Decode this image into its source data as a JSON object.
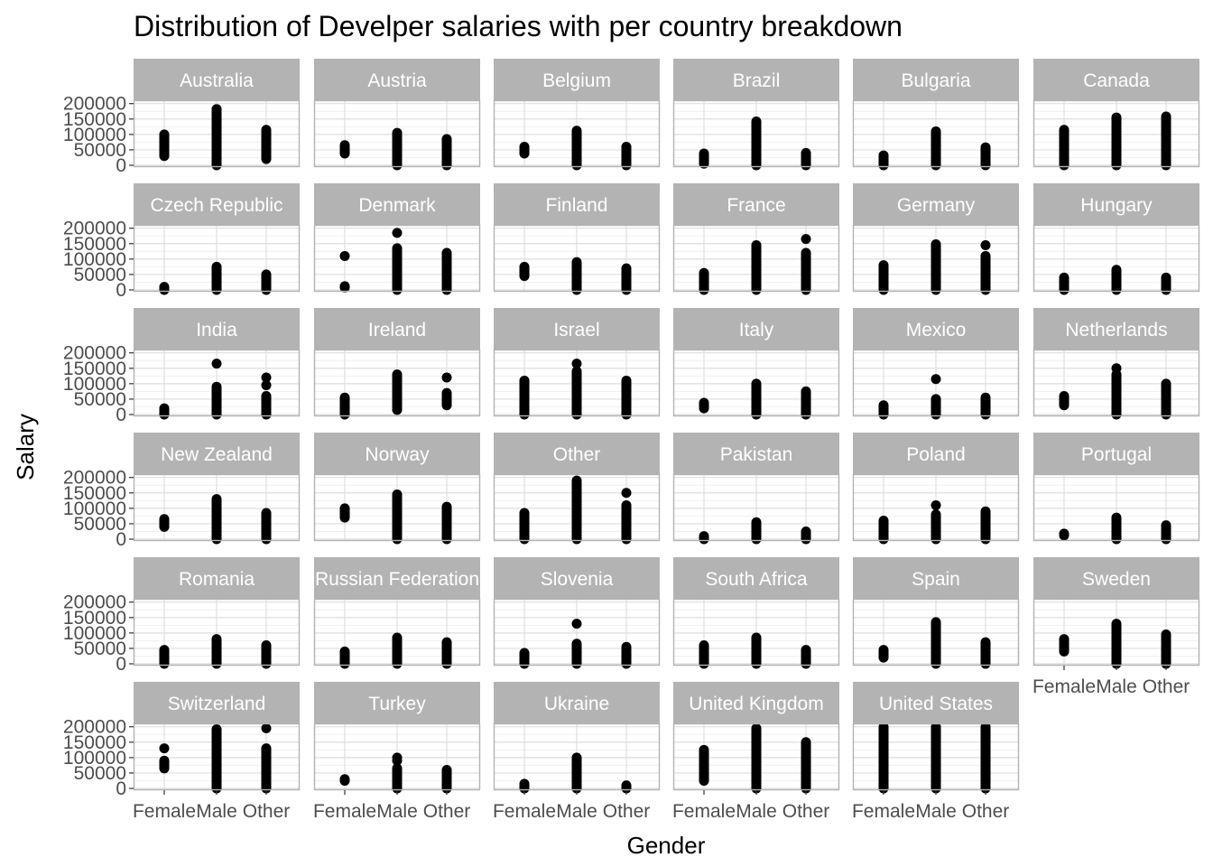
{
  "chart_data": {
    "type": "scatter",
    "title": "Distribution of Develper salaries with per country breakdown",
    "xlabel": "Gender",
    "ylabel": "Salary",
    "categories": [
      "Female",
      "Male",
      "Other"
    ],
    "y_ticks": [
      "0",
      "50000",
      "100000",
      "150000",
      "200000"
    ],
    "ylim": [
      0,
      205000
    ],
    "grid": true,
    "facets": [
      {
        "country": "Australia",
        "ranges": [
          [
            30000,
            100000
          ],
          [
            0,
            182000
          ],
          [
            20000,
            115000
          ]
        ],
        "points": [
          [
            1,
            182000
          ]
        ]
      },
      {
        "country": "Austria",
        "ranges": [
          [
            38000,
            65000
          ],
          [
            0,
            105000
          ],
          [
            0,
            85000
          ]
        ],
        "points": []
      },
      {
        "country": "Belgium",
        "ranges": [
          [
            38000,
            60000
          ],
          [
            0,
            112000
          ],
          [
            0,
            60000
          ]
        ],
        "points": []
      },
      {
        "country": "Brazil",
        "ranges": [
          [
            5000,
            38000
          ],
          [
            0,
            142000
          ],
          [
            0,
            40000
          ]
        ],
        "points": []
      },
      {
        "country": "Bulgaria",
        "ranges": [
          [
            0,
            32000
          ],
          [
            0,
            110000
          ],
          [
            0,
            58000
          ]
        ],
        "points": [
          [
            1,
            80000
          ]
        ]
      },
      {
        "country": "Canada",
        "ranges": [
          [
            0,
            115000
          ],
          [
            0,
            155000
          ],
          [
            0,
            158000
          ]
        ],
        "points": []
      },
      {
        "country": "Czech Republic",
        "ranges": [
          [
            0,
            10000
          ],
          [
            0,
            75000
          ],
          [
            0,
            50000
          ]
        ],
        "points": []
      },
      {
        "country": "Denmark",
        "ranges": [
          [
            8000,
            12000
          ],
          [
            0,
            135000
          ],
          [
            0,
            120000
          ]
        ],
        "points": [
          [
            0,
            110000
          ],
          [
            1,
            185000
          ]
        ]
      },
      {
        "country": "Finland",
        "ranges": [
          [
            45000,
            75000
          ],
          [
            0,
            90000
          ],
          [
            0,
            70000
          ]
        ],
        "points": []
      },
      {
        "country": "France",
        "ranges": [
          [
            0,
            55000
          ],
          [
            0,
            145000
          ],
          [
            0,
            120000
          ]
        ],
        "points": [
          [
            2,
            165000
          ]
        ]
      },
      {
        "country": "Germany",
        "ranges": [
          [
            0,
            80000
          ],
          [
            0,
            148000
          ],
          [
            0,
            110000
          ]
        ],
        "points": [
          [
            2,
            145000
          ]
        ]
      },
      {
        "country": "Hungary",
        "ranges": [
          [
            0,
            40000
          ],
          [
            0,
            65000
          ],
          [
            0,
            40000
          ]
        ],
        "points": []
      },
      {
        "country": "India",
        "ranges": [
          [
            0,
            20000
          ],
          [
            0,
            90000
          ],
          [
            0,
            60000
          ]
        ],
        "points": [
          [
            1,
            165000
          ],
          [
            2,
            95000
          ],
          [
            2,
            120000
          ]
        ]
      },
      {
        "country": "Ireland",
        "ranges": [
          [
            0,
            55000
          ],
          [
            15000,
            130000
          ],
          [
            30000,
            70000
          ]
        ],
        "points": [
          [
            2,
            120000
          ]
        ]
      },
      {
        "country": "Israel",
        "ranges": [
          [
            0,
            110000
          ],
          [
            0,
            140000
          ],
          [
            0,
            110000
          ]
        ],
        "points": [
          [
            1,
            165000
          ]
        ]
      },
      {
        "country": "Italy",
        "ranges": [
          [
            20000,
            38000
          ],
          [
            0,
            100000
          ],
          [
            0,
            75000
          ]
        ],
        "points": []
      },
      {
        "country": "Mexico",
        "ranges": [
          [
            0,
            30000
          ],
          [
            0,
            50000
          ],
          [
            0,
            55000
          ]
        ],
        "points": [
          [
            1,
            115000
          ]
        ]
      },
      {
        "country": "Netherlands",
        "ranges": [
          [
            30000,
            60000
          ],
          [
            0,
            130000
          ],
          [
            0,
            100000
          ]
        ],
        "points": [
          [
            1,
            150000
          ]
        ]
      },
      {
        "country": "New Zealand",
        "ranges": [
          [
            40000,
            65000
          ],
          [
            0,
            130000
          ],
          [
            0,
            85000
          ]
        ],
        "points": []
      },
      {
        "country": "Norway",
        "ranges": [
          [
            70000,
            100000
          ],
          [
            0,
            145000
          ],
          [
            0,
            105000
          ]
        ],
        "points": []
      },
      {
        "country": "Other",
        "ranges": [
          [
            0,
            85000
          ],
          [
            0,
            190000
          ],
          [
            0,
            110000
          ]
        ],
        "points": [
          [
            2,
            150000
          ]
        ]
      },
      {
        "country": "Pakistan",
        "ranges": [
          [
            0,
            10000
          ],
          [
            0,
            55000
          ],
          [
            0,
            25000
          ]
        ],
        "points": []
      },
      {
        "country": "Poland",
        "ranges": [
          [
            0,
            60000
          ],
          [
            0,
            80000
          ],
          [
            0,
            90000
          ]
        ],
        "points": [
          [
            1,
            110000
          ]
        ]
      },
      {
        "country": "Portugal",
        "ranges": [
          [
            12000,
            18000
          ],
          [
            0,
            70000
          ],
          [
            0,
            45000
          ]
        ],
        "points": []
      },
      {
        "country": "Romania",
        "ranges": [
          [
            0,
            45000
          ],
          [
            0,
            80000
          ],
          [
            0,
            60000
          ]
        ],
        "points": []
      },
      {
        "country": "Russian Federation",
        "ranges": [
          [
            0,
            40000
          ],
          [
            0,
            85000
          ],
          [
            0,
            70000
          ]
        ],
        "points": []
      },
      {
        "country": "Slovenia",
        "ranges": [
          [
            0,
            35000
          ],
          [
            0,
            65000
          ],
          [
            0,
            55000
          ]
        ],
        "points": [
          [
            1,
            130000
          ]
        ]
      },
      {
        "country": "South Africa",
        "ranges": [
          [
            0,
            60000
          ],
          [
            0,
            85000
          ],
          [
            0,
            45000
          ]
        ],
        "points": []
      },
      {
        "country": "Spain",
        "ranges": [
          [
            20000,
            45000
          ],
          [
            0,
            135000
          ],
          [
            0,
            70000
          ]
        ],
        "points": []
      },
      {
        "country": "Sweden",
        "ranges": [
          [
            40000,
            80000
          ],
          [
            0,
            130000
          ],
          [
            0,
            95000
          ]
        ],
        "points": []
      },
      {
        "country": "Switzerland",
        "ranges": [
          [
            65000,
            90000
          ],
          [
            0,
            192000
          ],
          [
            0,
            130000
          ]
        ],
        "points": [
          [
            0,
            130000
          ],
          [
            2,
            195000
          ]
        ]
      },
      {
        "country": "Turkey",
        "ranges": [
          [
            25000,
            30000
          ],
          [
            0,
            65000
          ],
          [
            0,
            60000
          ]
        ],
        "points": [
          [
            1,
            90000
          ],
          [
            1,
            100000
          ]
        ]
      },
      {
        "country": "Ukraine",
        "ranges": [
          [
            0,
            15000
          ],
          [
            0,
            100000
          ],
          [
            0,
            10000
          ]
        ],
        "points": []
      },
      {
        "country": "United Kingdom",
        "ranges": [
          [
            25000,
            125000
          ],
          [
            0,
            195000
          ],
          [
            0,
            150000
          ]
        ],
        "points": []
      },
      {
        "country": "United States",
        "ranges": [
          [
            0,
            200000
          ],
          [
            0,
            200000
          ],
          [
            0,
            200000
          ]
        ],
        "points": []
      }
    ]
  }
}
